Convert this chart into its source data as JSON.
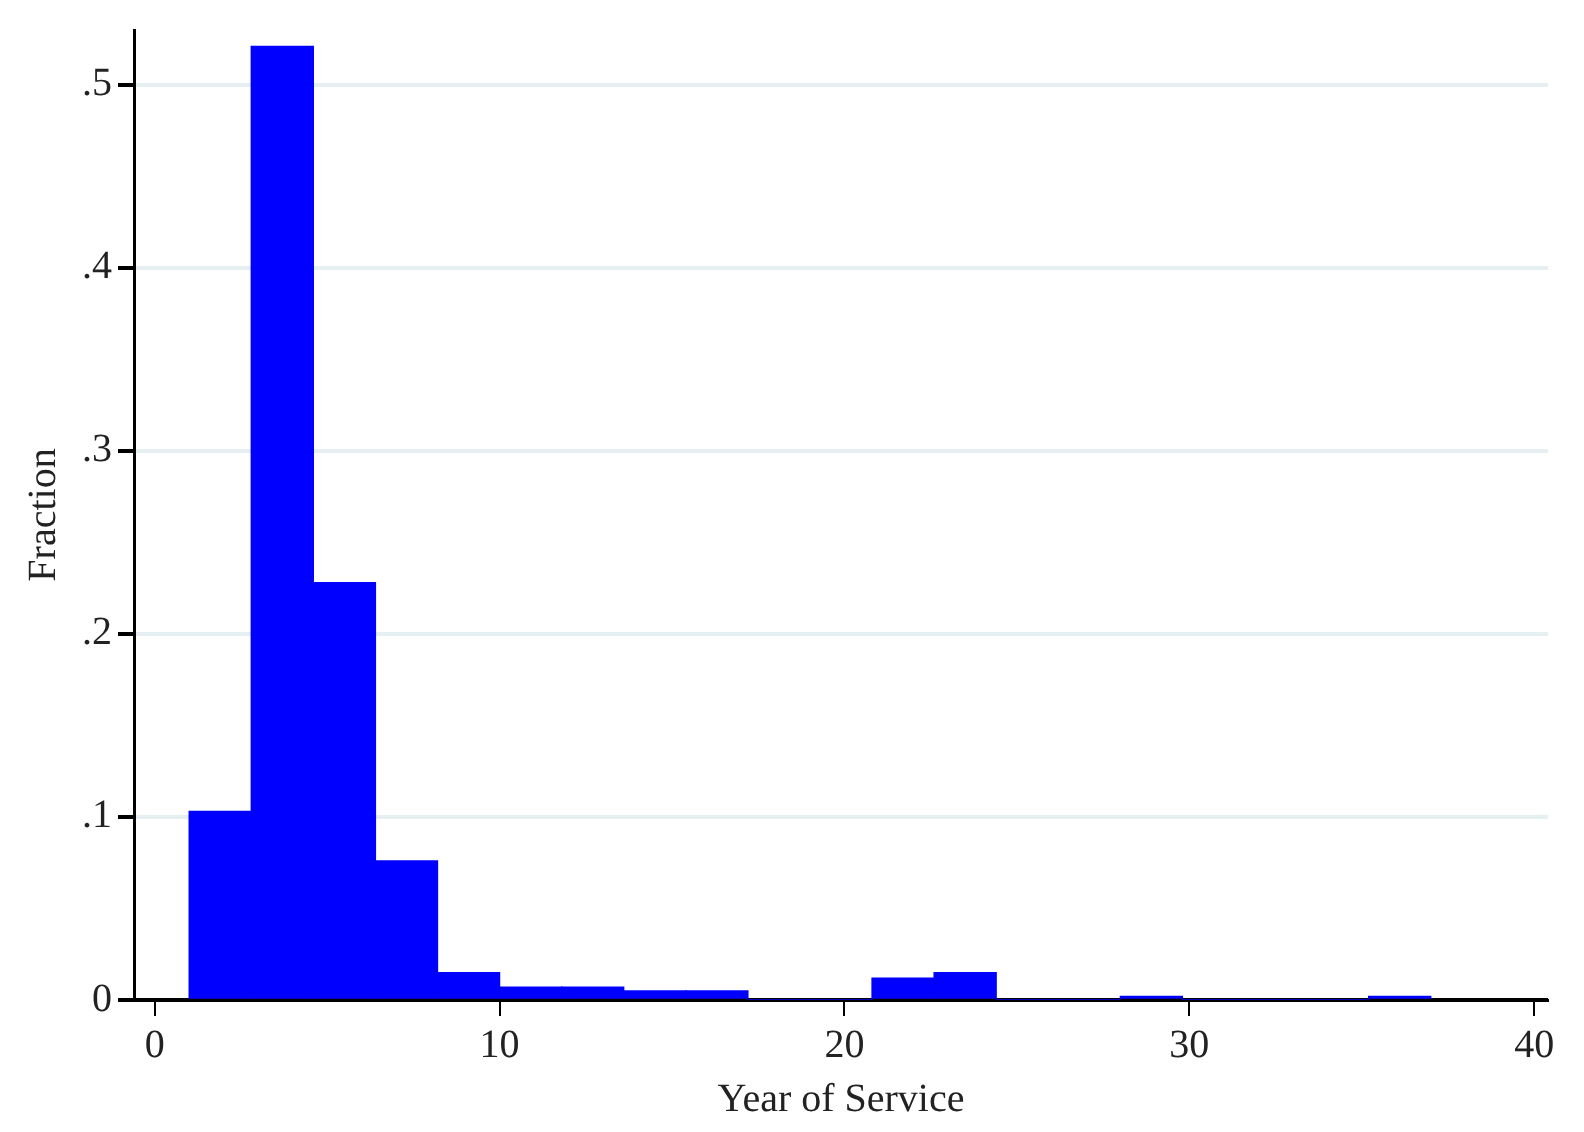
{
  "chart_data": {
    "type": "histogram",
    "xlabel": "Year of Service",
    "ylabel": "Fraction",
    "bins": [
      1,
      2.8,
      4.6,
      6.4,
      8.2,
      10,
      11.8,
      13.6,
      15.4,
      17.2,
      19,
      20.8,
      22.6,
      24.4,
      26.2,
      28,
      29.8,
      31.6,
      33.4,
      35.2,
      37
    ],
    "values": [
      0.103,
      0.521,
      0.228,
      0.076,
      0.015,
      0.007,
      0.007,
      0.005,
      0.005,
      0,
      0,
      0.012,
      0.015,
      0,
      0,
      0.002,
      0,
      0,
      0,
      0.002
    ],
    "color": "#0000ff",
    "xlim": [
      -0.6,
      40.4
    ],
    "xticks": [
      0,
      10,
      20,
      30,
      40
    ],
    "ylim": [
      0,
      0.53
    ],
    "yticks": [
      0,
      {
        "value": 0.1,
        "label": ".1"
      },
      {
        "value": 0.2,
        "label": ".2"
      },
      {
        "value": 0.3,
        "label": ".3"
      },
      {
        "value": 0.4,
        "label": ".4"
      },
      {
        "value": 0.5,
        "label": ".5"
      }
    ],
    "grid": "y",
    "legend": false
  }
}
